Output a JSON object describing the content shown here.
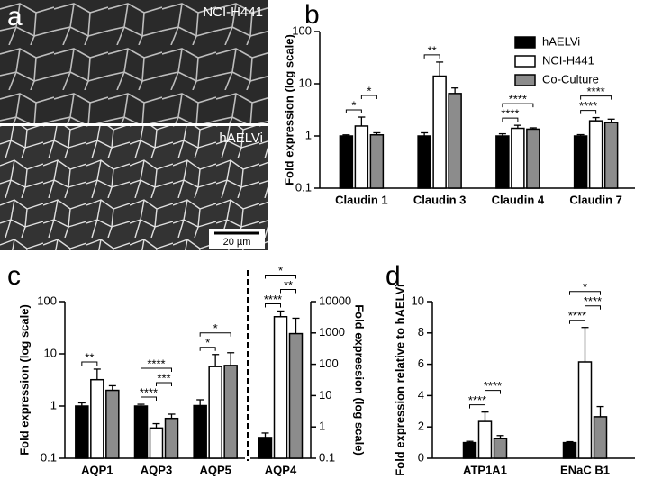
{
  "image_panel": {
    "letter": "a",
    "top_label": "NCI-H441",
    "bottom_label": "hAELVi",
    "scale_bar": "20 µm"
  },
  "chart_data": [
    {
      "type": "bar",
      "letter": "b",
      "y_label": "Fold expression (log scale)",
      "log_scale": true,
      "legend": "upper right",
      "categories": [
        "Claudin 1",
        "Claudin 3",
        "Claudin 4",
        "Claudin 7"
      ],
      "ylim": [
        0.1,
        100
      ],
      "yticks": [
        0.1,
        1,
        10,
        100
      ],
      "series": [
        {
          "name": "hAELVi",
          "color": "#000000",
          "values": [
            1.0,
            1.0,
            1.0,
            1.0
          ],
          "errors": [
            0.05,
            0.15,
            0.1,
            0.06
          ]
        },
        {
          "name": "NCI-H441",
          "color": "#ffffff",
          "values": [
            1.55,
            14,
            1.4,
            1.95
          ],
          "errors": [
            0.75,
            12,
            0.2,
            0.3
          ]
        },
        {
          "name": "Co-Culture",
          "color": "#8c8c8c",
          "values": [
            1.05,
            6.5,
            1.35,
            1.8
          ],
          "errors": [
            0.1,
            1.8,
            0.08,
            0.3
          ]
        }
      ],
      "annotations": [
        {
          "category": 0,
          "between": [
            0,
            1
          ],
          "text": "*"
        },
        {
          "category": 0,
          "between": [
            1,
            2
          ],
          "text": "*"
        },
        {
          "category": 1,
          "between": [
            0,
            1
          ],
          "text": "**"
        },
        {
          "category": 2,
          "between": [
            0,
            1
          ],
          "text": "****"
        },
        {
          "category": 2,
          "between": [
            0,
            2
          ],
          "text": "****"
        },
        {
          "category": 3,
          "between": [
            0,
            1
          ],
          "text": "****"
        },
        {
          "category": 3,
          "between": [
            0,
            2
          ],
          "text": "****"
        }
      ]
    },
    {
      "type": "bar",
      "letter": "c",
      "y_label": "Fold expression (log scale)",
      "log_scale": true,
      "categories": [
        "AQP1",
        "AQP3",
        "AQP5"
      ],
      "ylim": [
        0.1,
        100
      ],
      "yticks": [
        0.1,
        1,
        10,
        100
      ],
      "series": [
        {
          "color": "#000000",
          "values": [
            1.0,
            1.0,
            1.02
          ],
          "errors": [
            0.15,
            0.08,
            0.3
          ]
        },
        {
          "color": "#ffffff",
          "values": [
            3.2,
            0.38,
            5.7
          ],
          "errors": [
            1.9,
            0.08,
            4
          ]
        },
        {
          "color": "#8c8c8c",
          "values": [
            2.0,
            0.58,
            6.0
          ],
          "errors": [
            0.45,
            0.12,
            4.5
          ]
        }
      ],
      "annotations": [
        {
          "category": 0,
          "between": [
            0,
            1
          ],
          "text": "**"
        },
        {
          "category": 1,
          "between": [
            0,
            1
          ],
          "text": "****"
        },
        {
          "category": 1,
          "between": [
            1,
            2
          ],
          "text": "***"
        },
        {
          "category": 1,
          "between": [
            0,
            2
          ],
          "text": "****"
        },
        {
          "category": 2,
          "between": [
            0,
            1
          ],
          "text": "*"
        },
        {
          "category": 2,
          "between": [
            0,
            2
          ],
          "text": "*"
        }
      ]
    },
    {
      "type": "bar",
      "y2_label": "Fold expression (log scale)",
      "log_scale": true,
      "categories": [
        "AQP4"
      ],
      "y2lim": [
        0.1,
        10000
      ],
      "y2ticks": [
        0.1,
        1,
        10,
        100,
        1000,
        10000
      ],
      "series": [
        {
          "color": "#000000",
          "axis": "y2",
          "values": [
            0.46
          ],
          "errors": [
            0.18
          ]
        },
        {
          "color": "#ffffff",
          "axis": "y2",
          "values": [
            3300
          ],
          "errors": [
            1700
          ]
        },
        {
          "color": "#8c8c8c",
          "axis": "y2",
          "values": [
            950
          ],
          "errors": [
            2000
          ]
        }
      ],
      "annotations": [
        {
          "category": 0,
          "between": [
            0,
            1
          ],
          "text": "****"
        },
        {
          "category": 0,
          "between": [
            1,
            2
          ],
          "text": "**"
        },
        {
          "category": 0,
          "between": [
            0,
            2
          ],
          "text": "*"
        }
      ]
    },
    {
      "type": "bar",
      "letter": "d",
      "y_label": "Fold expression relative to hAELVi",
      "log_scale": false,
      "categories": [
        "ATP1A1",
        "ENaC B1"
      ],
      "ylim": [
        0,
        10
      ],
      "yticks": [
        0,
        2,
        4,
        6,
        8,
        10
      ],
      "series": [
        {
          "color": "#000000",
          "values": [
            1.0,
            1.0
          ],
          "errors": [
            0.08,
            0.06
          ]
        },
        {
          "color": "#ffffff",
          "values": [
            2.35,
            6.15
          ],
          "errors": [
            0.6,
            2.2
          ]
        },
        {
          "color": "#8c8c8c",
          "values": [
            1.25,
            2.65
          ],
          "errors": [
            0.2,
            0.65
          ]
        }
      ],
      "annotations": [
        {
          "category": 0,
          "between": [
            0,
            1
          ],
          "text": "****"
        },
        {
          "category": 0,
          "between": [
            1,
            2
          ],
          "text": "****"
        },
        {
          "category": 1,
          "between": [
            0,
            1
          ],
          "text": "****"
        },
        {
          "category": 1,
          "between": [
            1,
            2
          ],
          "text": "****"
        },
        {
          "category": 1,
          "between": [
            0,
            2
          ],
          "text": "*"
        }
      ]
    }
  ]
}
